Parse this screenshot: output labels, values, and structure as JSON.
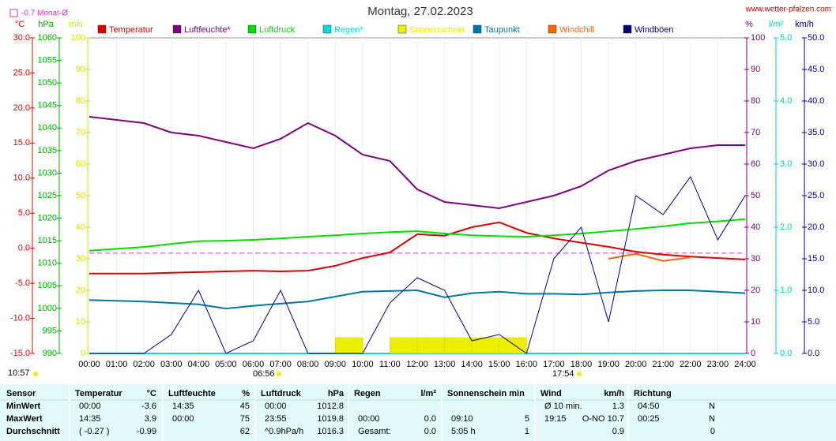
{
  "chart_data": {
    "type": "line",
    "title": "Montag, 27.02.2023",
    "source": "www.wetter-pfalzen.com",
    "monthly_mean": {
      "label": "-0.7 Monat-Ø",
      "value": -0.7,
      "color": "#cc33cc"
    },
    "sun_annotations": [
      "10:57",
      "06:56",
      "17:54"
    ],
    "categories": [
      "00:00",
      "01:00",
      "02:00",
      "03:00",
      "04:00",
      "05:00",
      "06:00",
      "07:00",
      "08:00",
      "09:00",
      "10:00",
      "11:00",
      "12:00",
      "13:00",
      "14:00",
      "15:00",
      "16:00",
      "17:00",
      "18:00",
      "19:00",
      "20:00",
      "21:00",
      "22:00",
      "23:00",
      "24:00"
    ],
    "axes": {
      "temp": {
        "label": "°C",
        "color": "#dd0000",
        "lim": [
          -15,
          30
        ],
        "ticks": [
          {
            "value": -15,
            "label": "-15.0"
          },
          {
            "value": -10,
            "label": "-10.0"
          },
          {
            "value": -5,
            "label": "-5.0"
          },
          {
            "value": 0,
            "label": "0.0"
          },
          {
            "value": 5,
            "label": "5.0"
          },
          {
            "value": 10,
            "label": "10.0"
          },
          {
            "value": 15,
            "label": "15.0"
          },
          {
            "value": 20,
            "label": "20.0"
          },
          {
            "value": 25,
            "label": "25.0"
          },
          {
            "value": 30,
            "label": "30.0"
          }
        ]
      },
      "hpa": {
        "label": "hPa",
        "color": "#00aa00",
        "lim": [
          990,
          1060
        ],
        "ticks": [
          990,
          995,
          1000,
          1005,
          1010,
          1015,
          1020,
          1025,
          1030,
          1035,
          1040,
          1045,
          1050,
          1055,
          1060
        ]
      },
      "min": {
        "label": "min",
        "color": "#dddd00",
        "lim": [
          0,
          100
        ],
        "ticks": [
          0,
          10,
          20,
          30,
          40,
          50,
          60,
          70,
          80,
          90,
          100
        ]
      },
      "pct": {
        "label": "%",
        "color": "#800080",
        "lim": [
          0,
          100
        ],
        "ticks": [
          0,
          10,
          20,
          30,
          40,
          50,
          60,
          70,
          80,
          90,
          100
        ]
      },
      "rain": {
        "label": "l/m²",
        "color": "#00cccc",
        "lim": [
          0,
          5
        ],
        "ticks": [
          {
            "value": 0,
            "label": "0.0"
          },
          {
            "value": 1,
            "label": "1.0"
          },
          {
            "value": 2,
            "label": "2.0"
          },
          {
            "value": 3,
            "label": "3.0"
          },
          {
            "value": 4,
            "label": "4.0"
          },
          {
            "value": 5,
            "label": "5.0"
          }
        ]
      },
      "kmh": {
        "label": "km/h",
        "color": "#000080",
        "lim": [
          0,
          50
        ],
        "ticks": [
          {
            "value": 0,
            "label": "0.0"
          },
          {
            "value": 5,
            "label": "5.0"
          },
          {
            "value": 10,
            "label": "10.0"
          },
          {
            "value": 15,
            "label": "15.0"
          },
          {
            "value": 20,
            "label": "20.0"
          },
          {
            "value": 25,
            "label": "25.0"
          },
          {
            "value": 30,
            "label": "30.0"
          },
          {
            "value": 35,
            "label": "35.0"
          },
          {
            "value": 40,
            "label": "40.0"
          },
          {
            "value": 45,
            "label": "45.0"
          },
          {
            "value": 50,
            "label": "50.0"
          }
        ]
      }
    },
    "series": [
      {
        "name": "Temperatur",
        "color": "#dd0000",
        "axis": "temp",
        "values": [
          -3.6,
          -3.6,
          -3.6,
          -3.5,
          -3.4,
          -3.3,
          -3.2,
          -3.3,
          -3.2,
          -2.5,
          -1.4,
          -0.6,
          2.0,
          1.8,
          3.0,
          3.7,
          2.2,
          1.4,
          0.8,
          0.2,
          -0.5,
          -0.9,
          -1.2,
          -1.4,
          -1.6
        ]
      },
      {
        "name": "Luftfeuchte*",
        "color": "#800080",
        "axis": "pct",
        "values": [
          75,
          74,
          73,
          70,
          69,
          67,
          65,
          68,
          73,
          69,
          63,
          61,
          52,
          48,
          47,
          46,
          48,
          50,
          53,
          58,
          61,
          63,
          65,
          66,
          66
        ]
      },
      {
        "name": "Luftdruck",
        "color": "#00dd00",
        "axis": "hpa",
        "values": [
          1012.8,
          1013.2,
          1013.6,
          1014.3,
          1014.9,
          1015.0,
          1015.2,
          1015.5,
          1015.9,
          1016.2,
          1016.6,
          1016.9,
          1017.1,
          1016.6,
          1016.2,
          1016.0,
          1015.9,
          1016.2,
          1016.6,
          1017.1,
          1017.6,
          1018.2,
          1018.9,
          1019.3,
          1019.8
        ]
      },
      {
        "name": "Regen*",
        "color": "#00dddd",
        "axis": "rain",
        "values": [
          0,
          0,
          0,
          0,
          0,
          0,
          0,
          0,
          0,
          0,
          0,
          0,
          0,
          0,
          0,
          0,
          0,
          0,
          0,
          0,
          0,
          0,
          0,
          0,
          0
        ]
      },
      {
        "name": "Sonnenschein",
        "color": "#eeee00",
        "axis": "min",
        "style": "bars",
        "values": [
          0,
          0,
          0,
          0,
          0,
          0,
          0,
          0,
          0,
          5,
          0,
          5,
          5,
          5,
          5,
          5,
          0,
          0,
          0,
          0,
          0,
          0,
          0,
          0,
          0
        ]
      },
      {
        "name": "Taupunkt",
        "color": "#0077aa",
        "axis": "temp",
        "values": [
          -7.4,
          -7.5,
          -7.6,
          -7.8,
          -8.0,
          -8.6,
          -8.2,
          -7.9,
          -7.6,
          -6.9,
          -6.2,
          -6.1,
          -6.0,
          -7.0,
          -6.4,
          -6.2,
          -6.5,
          -6.5,
          -6.6,
          -6.3,
          -6.1,
          -6.0,
          -6.0,
          -6.2,
          -6.4
        ]
      },
      {
        "name": "Windchill",
        "color": "#ff6600",
        "axis": "temp",
        "values": [
          null,
          null,
          null,
          null,
          null,
          null,
          null,
          null,
          null,
          null,
          null,
          null,
          null,
          null,
          null,
          null,
          null,
          null,
          null,
          -1.5,
          -0.8,
          -1.8,
          -1.3,
          null,
          null
        ]
      },
      {
        "name": "Windböen",
        "color": "#000080",
        "axis": "kmh",
        "values": [
          0,
          0,
          0,
          3,
          10,
          0,
          2,
          10,
          0,
          0,
          0,
          8,
          12,
          10,
          2,
          3,
          0,
          15,
          20,
          5,
          25,
          22,
          28,
          18,
          25
        ]
      }
    ]
  },
  "table": {
    "rows": [
      {
        "label": "Sensor",
        "temp_t": "Temperatur",
        "temp_v": "°C",
        "hum_t": "Luftfeuchte",
        "hum_v": "%",
        "pres_t": "Luftdruck",
        "pres_v": "hPa",
        "rain_t": "Regen",
        "rain_v": "l/m²",
        "sun_t": "Sonnenschein min",
        "wind_t": "Wind",
        "wind_v": "km/h",
        "dir_t": "Richtung"
      },
      {
        "label": "MinWert",
        "temp_t": "00:00",
        "temp_v": "-3.6",
        "hum_t": "14:35",
        "hum_v": "45",
        "pres_t": "00:00",
        "pres_v": "1012.8",
        "wind_t": "Ø 10 min.",
        "wind_v": "1.3",
        "dir_t": "04:50",
        "dir_v": "N"
      },
      {
        "label": "MaxWert",
        "temp_t": "14:35",
        "temp_v": "3.9",
        "hum_t": "00:00",
        "hum_v": "75",
        "pres_t": "23:55",
        "pres_v": "1019.8",
        "rain_t": "00:00",
        "rain_v": "0.0",
        "sun_t": "09:10",
        "sun_v": "5",
        "wind_t": "19:15",
        "wind_v": "O-NO 10.7",
        "dir_t": "00:25",
        "dir_v": "N"
      },
      {
        "label": "Durchschnitt",
        "temp_t": "( -0.27 )",
        "temp_v": "-0.99",
        "hum_v": "62",
        "pres_t": "^0.9hPa/h",
        "pres_v": "1016.3",
        "rain_t": "Gesamt:",
        "rain_v": "0.0",
        "sun_t": "5:05 h",
        "sun_v": "1",
        "wind_v": "0.9",
        "dir_v": "0"
      }
    ]
  }
}
